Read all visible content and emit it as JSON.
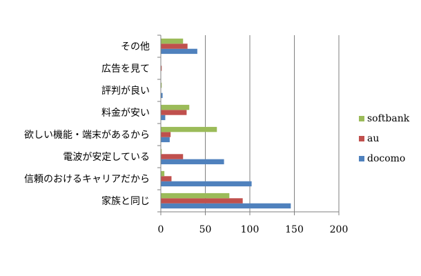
{
  "chart_data": {
    "type": "bar",
    "orientation": "horizontal",
    "categories": [
      "家族と同じ",
      "信頼のおけるキャリアだから",
      "電波が安定している",
      "欲しい機能・端末があるから",
      "料金が安い",
      "評判が良い",
      "広告を見て",
      "その他"
    ],
    "series": [
      {
        "name": "docomo",
        "color": "#4F81BD",
        "values": [
          146,
          102,
          71,
          10,
          5,
          2,
          0,
          41
        ]
      },
      {
        "name": "au",
        "color": "#C0504D",
        "values": [
          92,
          12,
          25,
          11,
          29,
          0,
          1,
          30
        ]
      },
      {
        "name": "softbank",
        "color": "#9BBB59",
        "values": [
          77,
          4,
          1,
          63,
          32,
          1,
          0,
          25
        ]
      }
    ],
    "xlim": [
      0,
      200
    ],
    "xticks": [
      0,
      50,
      100,
      150,
      200
    ],
    "grid": true,
    "legend_position": "right"
  }
}
